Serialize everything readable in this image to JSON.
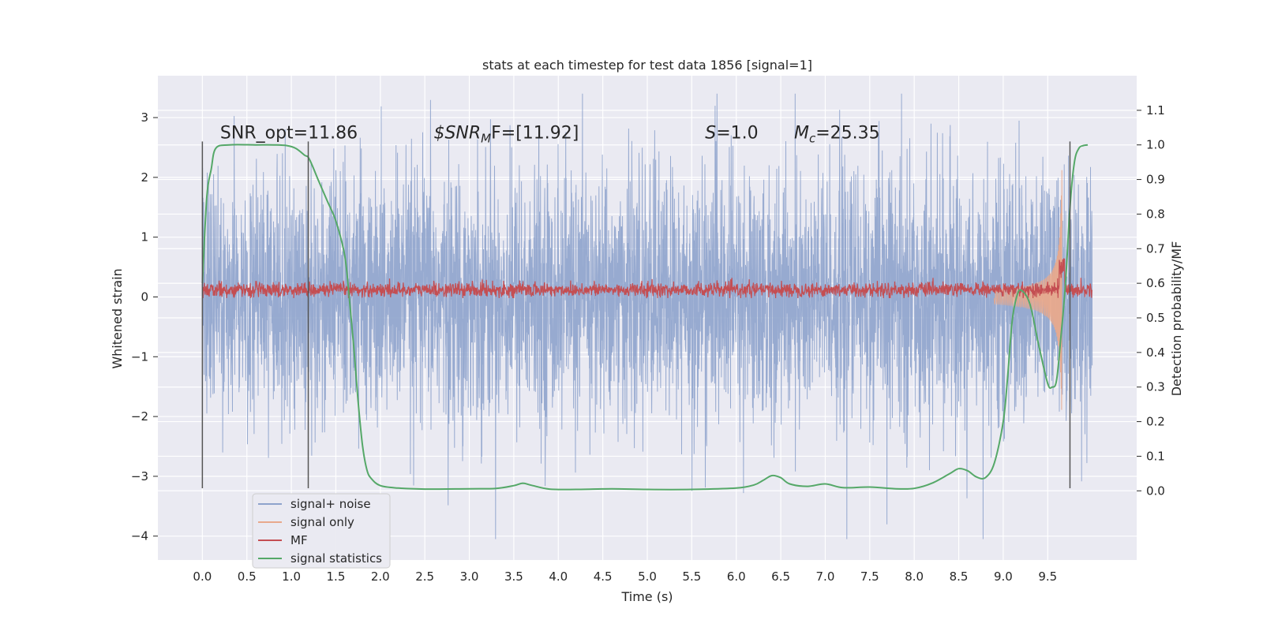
{
  "chart_data": {
    "type": "line",
    "title": "stats at each timestep for test data 1856 [signal=1]",
    "xlabel": "Time (s)",
    "ylabel": "Whitened strain",
    "y2label": "Detection probability/MF",
    "xlim": [
      -0.5,
      10.5
    ],
    "ylim": [
      -4.4,
      3.7
    ],
    "y2lim": [
      -0.2,
      1.2
    ],
    "grid": true,
    "legend_position": "lower-left",
    "x_ticks": [
      "0.0",
      "0.5",
      "1.0",
      "1.5",
      "2.0",
      "2.5",
      "3.0",
      "3.5",
      "4.0",
      "4.5",
      "5.0",
      "5.5",
      "6.0",
      "6.5",
      "7.0",
      "7.5",
      "8.0",
      "8.5",
      "9.0",
      "9.5"
    ],
    "y_ticks": [
      "3",
      "2",
      "1",
      "0",
      "−1",
      "−2",
      "−3",
      "−4"
    ],
    "y2_ticks": [
      "1.1",
      "1.0",
      "0.9",
      "0.8",
      "0.7",
      "0.6",
      "0.5",
      "0.4",
      "0.3",
      "0.2",
      "0.1",
      "0.0"
    ],
    "annotations": [
      {
        "name": "snr-opt",
        "text": "SNR_opt=11.86",
        "x": 0.2,
        "y": 2.65
      },
      {
        "name": "snr-mf",
        "prefix": "$",
        "base": "SNR",
        "sub": "M",
        "rest": "F=[11.92]",
        "x": 2.6,
        "y": 2.65
      },
      {
        "name": "s-value",
        "base": "S",
        "rest": "=1.0",
        "x": 5.65,
        "y": 2.65
      },
      {
        "name": "mc-value",
        "base": "M",
        "sub": "c",
        "rest": "=25.35",
        "x": 6.65,
        "y": 2.65
      }
    ],
    "vertical_markers": [
      0.0,
      1.19,
      9.75
    ],
    "series": [
      {
        "name": "signal+ noise",
        "color": "#8ea3cc",
        "kind": "noise",
        "x_range": [
          0,
          10
        ],
        "std": 1.05,
        "min": -4.05,
        "max": 3.4
      },
      {
        "name": "signal only",
        "color": "#e8a98c",
        "kind": "chirp",
        "x_range": [
          8.9,
          9.66
        ],
        "peak_amplitude": 2.35
      },
      {
        "name": "MF",
        "color": "#c44e52",
        "kind": "mf",
        "x_range": [
          0,
          10
        ],
        "level": 0.12,
        "peak": 0.32
      },
      {
        "name": "signal statistics",
        "color": "#55a868",
        "kind": "curve",
        "axis": "y2",
        "x": [
          0.0,
          0.05,
          0.1,
          0.15,
          0.3,
          0.6,
          0.8,
          0.95,
          1.05,
          1.15,
          1.2,
          1.3,
          1.4,
          1.5,
          1.6,
          1.65,
          1.7,
          1.75,
          1.8,
          1.85,
          1.9,
          2.0,
          2.2,
          2.5,
          3.0,
          3.3,
          3.5,
          3.6,
          3.7,
          3.9,
          4.2,
          4.6,
          5.0,
          5.5,
          6.0,
          6.2,
          6.3,
          6.4,
          6.5,
          6.6,
          6.8,
          7.0,
          7.2,
          7.5,
          7.8,
          8.0,
          8.2,
          8.4,
          8.5,
          8.6,
          8.7,
          8.8,
          8.9,
          9.0,
          9.05,
          9.1,
          9.15,
          9.2,
          9.3,
          9.4,
          9.5,
          9.55,
          9.6,
          9.65,
          9.7,
          9.75,
          9.8,
          9.85,
          9.9,
          9.95
        ],
        "y": [
          0.6,
          0.85,
          0.93,
          0.99,
          1.0,
          1.0,
          1.0,
          0.998,
          0.99,
          0.97,
          0.96,
          0.9,
          0.84,
          0.78,
          0.68,
          0.56,
          0.42,
          0.26,
          0.13,
          0.06,
          0.035,
          0.015,
          0.008,
          0.005,
          0.006,
          0.007,
          0.015,
          0.022,
          0.016,
          0.005,
          0.004,
          0.006,
          0.004,
          0.004,
          0.008,
          0.017,
          0.03,
          0.044,
          0.038,
          0.02,
          0.013,
          0.02,
          0.009,
          0.011,
          0.006,
          0.007,
          0.022,
          0.05,
          0.064,
          0.058,
          0.04,
          0.038,
          0.08,
          0.2,
          0.33,
          0.49,
          0.56,
          0.58,
          0.54,
          0.42,
          0.31,
          0.3,
          0.32,
          0.45,
          0.6,
          0.82,
          0.95,
          0.99,
          0.998,
          1.0
        ]
      }
    ]
  }
}
